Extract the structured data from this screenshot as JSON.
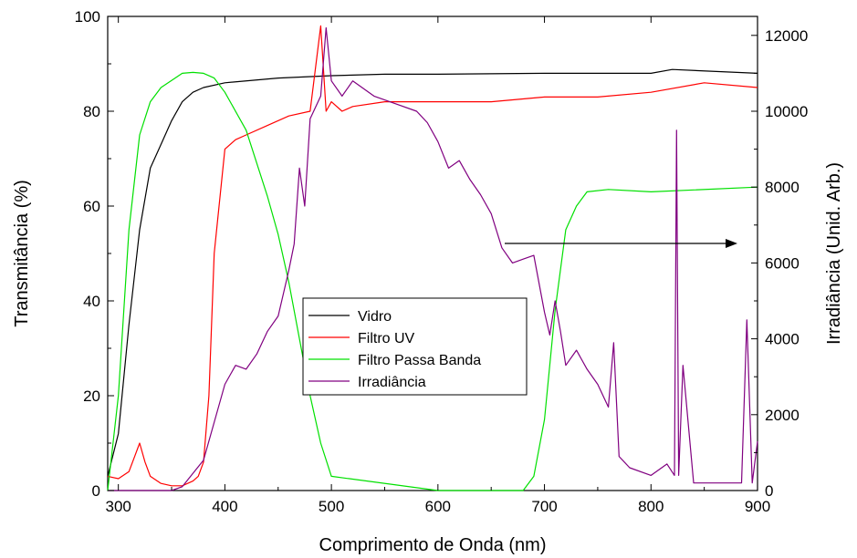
{
  "chart_data": {
    "type": "line",
    "xlabel": "Comprimento de Onda (nm)",
    "ylabel": "Transmitância (%)",
    "y2label": "Irradiância (Unid. Arb.)",
    "xlim": [
      290,
      900
    ],
    "ylim": [
      0,
      100
    ],
    "y2lim": [
      0,
      12500
    ],
    "x_ticks": [
      300,
      400,
      500,
      600,
      700,
      800,
      900
    ],
    "y_ticks": [
      0,
      20,
      40,
      60,
      80,
      100
    ],
    "y2_ticks": [
      0,
      2000,
      4000,
      6000,
      8000,
      10000,
      12000
    ],
    "legend_position": "center",
    "annotation": "arrow pointing to right axis",
    "series": [
      {
        "name": "Vidro",
        "color": "#000000",
        "axis": "left",
        "x": [
          290,
          300,
          310,
          320,
          330,
          340,
          350,
          360,
          370,
          380,
          400,
          450,
          500,
          550,
          600,
          700,
          800,
          820,
          900
        ],
        "y": [
          3,
          12,
          35,
          55,
          68,
          73,
          78,
          82,
          84,
          85,
          86,
          87,
          87.5,
          87.8,
          87.8,
          88,
          88,
          88.8,
          88
        ]
      },
      {
        "name": "Filtro UV",
        "color": "#ff0000",
        "axis": "left",
        "x": [
          290,
          300,
          310,
          315,
          320,
          325,
          330,
          340,
          350,
          360,
          370,
          375,
          380,
          385,
          390,
          400,
          410,
          420,
          440,
          460,
          480,
          490,
          495,
          500,
          510,
          520,
          550,
          580,
          600,
          650,
          700,
          750,
          800,
          850,
          900
        ],
        "y": [
          3,
          2.5,
          4,
          7,
          10,
          6,
          3,
          1.5,
          1,
          1,
          2,
          3,
          6,
          20,
          50,
          72,
          74,
          75,
          77,
          79,
          80,
          98,
          80,
          82,
          80,
          81,
          82,
          82,
          82,
          82,
          83,
          83,
          84,
          86,
          85
        ]
      },
      {
        "name": "Filtro Passa Banda",
        "color": "#00e000",
        "axis": "left",
        "x": [
          290,
          300,
          310,
          320,
          330,
          340,
          350,
          360,
          370,
          380,
          390,
          400,
          420,
          440,
          450,
          460,
          470,
          480,
          490,
          500,
          600,
          680,
          690,
          700,
          710,
          720,
          730,
          740,
          760,
          800,
          900
        ],
        "y": [
          0,
          20,
          55,
          75,
          82,
          85,
          86.5,
          88,
          88.2,
          88,
          87,
          84,
          76,
          62,
          54,
          44,
          32,
          20,
          10,
          3,
          0,
          0,
          3,
          15,
          38,
          55,
          60,
          63,
          63.5,
          63,
          64
        ]
      },
      {
        "name": "Irradiância",
        "color": "#800080",
        "axis": "right",
        "x": [
          290,
          300,
          350,
          360,
          380,
          390,
          400,
          410,
          420,
          430,
          440,
          450,
          460,
          465,
          470,
          475,
          480,
          490,
          495,
          500,
          510,
          520,
          540,
          560,
          580,
          590,
          600,
          610,
          620,
          630,
          640,
          650,
          660,
          670,
          680,
          690,
          700,
          705,
          710,
          715,
          720,
          730,
          740,
          750,
          760,
          765,
          770,
          780,
          800,
          815,
          822,
          824,
          826,
          830,
          840,
          850,
          860,
          870,
          880,
          885,
          890,
          895,
          900
        ],
        "y": [
          0,
          0,
          0,
          100,
          800,
          1800,
          2800,
          3300,
          3200,
          3600,
          4200,
          4600,
          5800,
          6500,
          8500,
          7500,
          9800,
          10400,
          12200,
          10800,
          10400,
          10800,
          10400,
          10200,
          10000,
          9700,
          9200,
          8500,
          8700,
          8200,
          7800,
          7300,
          6400,
          6000,
          6100,
          6200,
          4700,
          4100,
          5000,
          4200,
          3300,
          3700,
          3200,
          2800,
          2200,
          3900,
          900,
          600,
          400,
          700,
          400,
          9500,
          400,
          3300,
          200,
          200,
          200,
          200,
          200,
          200,
          4500,
          200,
          1300
        ]
      }
    ]
  }
}
